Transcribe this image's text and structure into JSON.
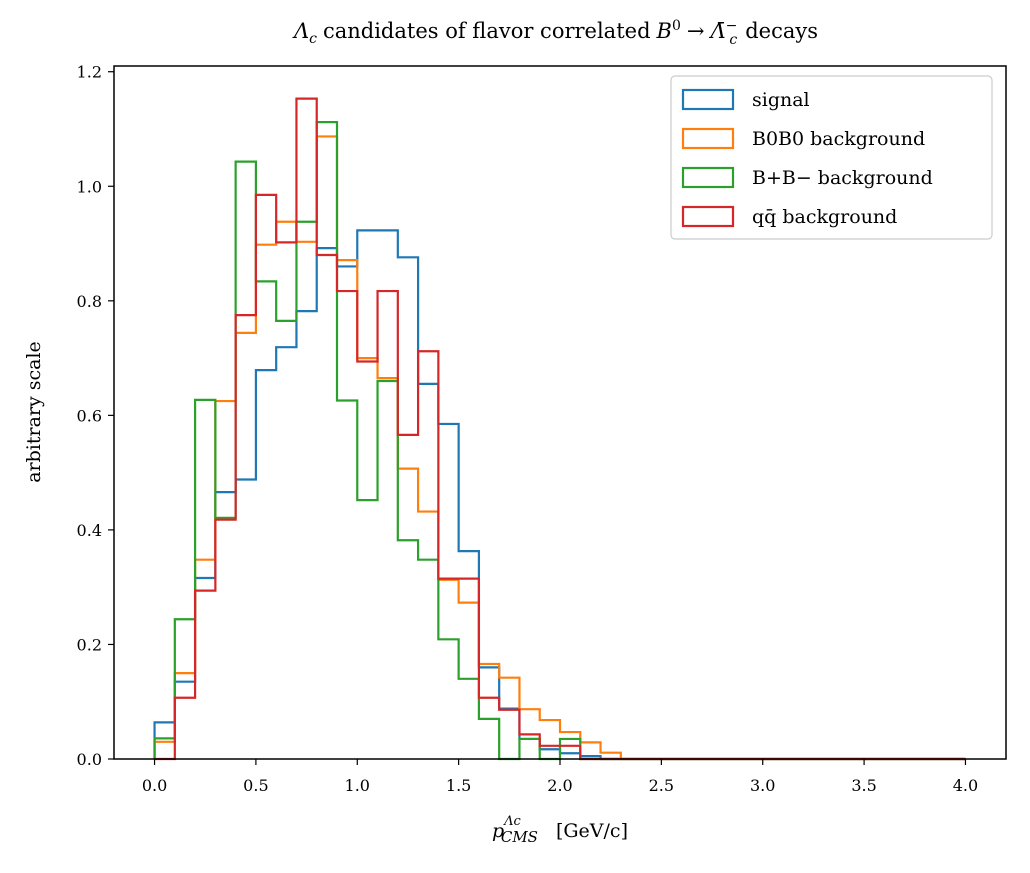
{
  "chart_data": {
    "type": "histogram",
    "title": {
      "lam": "Λ",
      "lam_sub": "c",
      "text1": "candidates of flavor correlated",
      "b": "B",
      "b_sup": "0",
      "arrow": "→",
      "lambar": "Λ̄",
      "lambar_sup": "−",
      "lambar_sub": "c",
      "text2": "decays"
    },
    "xlabel": {
      "p": "p",
      "sup": "Λc",
      "sub": "CMS",
      "units": "[GeV/c]"
    },
    "ylabel": "arbitrary scale",
    "xlim": [
      -0.2,
      4.2
    ],
    "ylim": [
      0,
      1.21
    ],
    "xticks": [
      "0.0",
      "0.5",
      "1.0",
      "1.5",
      "2.0",
      "2.5",
      "3.0",
      "3.5",
      "4.0"
    ],
    "yticks": [
      "0.0",
      "0.2",
      "0.4",
      "0.6",
      "0.8",
      "1.0",
      "1.2"
    ],
    "bin_edges_start": 0.0,
    "bin_width": 0.1,
    "bin_count": 40,
    "legend_position": "upper right",
    "series": [
      {
        "key": "signal",
        "name": "signal",
        "color": "#1f77b4",
        "values": [
          0.064,
          0.135,
          0.316,
          0.466,
          0.488,
          0.679,
          0.719,
          0.782,
          0.892,
          0.86,
          0.923,
          0.923,
          0.876,
          0.655,
          0.585,
          0.363,
          0.16,
          0.088,
          0.035,
          0.017,
          0.01,
          0.005,
          0,
          0,
          0,
          0,
          0,
          0,
          0,
          0,
          0,
          0,
          0,
          0,
          0,
          0,
          0,
          0,
          0,
          0
        ]
      },
      {
        "key": "b0b0",
        "name": "B0B0 background",
        "color": "#ff7f0e",
        "values": [
          0.03,
          0.15,
          0.348,
          0.625,
          0.744,
          0.898,
          0.938,
          0.903,
          1.087,
          0.871,
          0.7,
          0.665,
          0.507,
          0.432,
          0.313,
          0.273,
          0.166,
          0.142,
          0.087,
          0.068,
          0.047,
          0.029,
          0.011,
          0,
          0,
          0,
          0,
          0,
          0,
          0,
          0,
          0,
          0,
          0,
          0,
          0,
          0,
          0,
          0,
          0
        ]
      },
      {
        "key": "bpbm",
        "name": "B+B− background",
        "color": "#2ca02c",
        "values": [
          0.036,
          0.244,
          0.627,
          0.421,
          1.043,
          0.834,
          0.765,
          0.938,
          1.112,
          0.626,
          0.452,
          0.66,
          0.382,
          0.348,
          0.209,
          0.14,
          0.07,
          0,
          0.035,
          0,
          0.035,
          0,
          0,
          0,
          0,
          0,
          0,
          0,
          0,
          0,
          0,
          0,
          0,
          0,
          0,
          0,
          0,
          0,
          0,
          0
        ]
      },
      {
        "key": "qqbar",
        "name": "qq̄ background",
        "color": "#d62728",
        "values": [
          0,
          0.107,
          0.294,
          0.418,
          0.775,
          0.985,
          0.902,
          1.153,
          0.88,
          0.817,
          0.694,
          0.817,
          0.566,
          0.712,
          0.315,
          0.315,
          0.107,
          0.086,
          0.043,
          0.023,
          0.023,
          0,
          0,
          0,
          0,
          0,
          0,
          0,
          0,
          0,
          0,
          0,
          0,
          0,
          0,
          0,
          0,
          0,
          0,
          0
        ]
      }
    ]
  }
}
